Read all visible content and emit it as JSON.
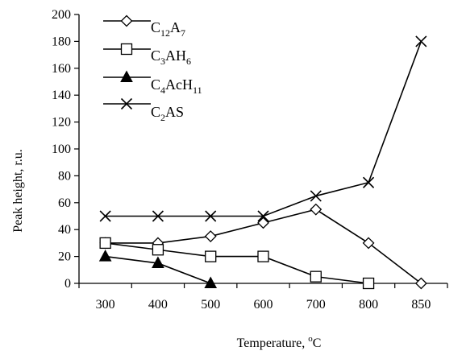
{
  "chart_data": {
    "type": "line",
    "xlabel": "Temperature, ",
    "xlabel_sup": "o",
    "xlabel_unit": "C",
    "ylabel": "Peak height, r.u.",
    "categories": [
      "300",
      "400",
      "500",
      "600",
      "700",
      "800",
      "850"
    ],
    "ylim": [
      0,
      200
    ],
    "yticks": [
      0,
      20,
      40,
      60,
      80,
      100,
      120,
      140,
      160,
      180,
      200
    ],
    "grid": false,
    "legend_position": "top-left",
    "series": [
      {
        "name": "C12A7",
        "label_parts": [
          [
            "C",
            ""
          ],
          [
            "12",
            "sub"
          ],
          [
            "A",
            ""
          ],
          [
            "7",
            "sub"
          ]
        ],
        "marker": "diamond-open",
        "values": [
          30,
          30,
          35,
          45,
          55,
          30,
          0
        ]
      },
      {
        "name": "C3AH6",
        "label_parts": [
          [
            "C",
            ""
          ],
          [
            "3",
            "sub"
          ],
          [
            "AH",
            ""
          ],
          [
            "6",
            "sub"
          ]
        ],
        "marker": "square-open",
        "values": [
          30,
          25,
          20,
          20,
          5,
          0,
          null
        ]
      },
      {
        "name": "C4AcH11",
        "label_parts": [
          [
            "C",
            ""
          ],
          [
            "4",
            "sub"
          ],
          [
            "AcH",
            ""
          ],
          [
            "11",
            "sub"
          ]
        ],
        "marker": "triangle-filled",
        "values": [
          20,
          15,
          0,
          null,
          null,
          null,
          null
        ]
      },
      {
        "name": "C2AS",
        "label_parts": [
          [
            "C",
            ""
          ],
          [
            "2",
            "sub"
          ],
          [
            "AS",
            ""
          ]
        ],
        "marker": "x",
        "values": [
          50,
          50,
          50,
          50,
          65,
          75,
          180
        ]
      }
    ]
  }
}
